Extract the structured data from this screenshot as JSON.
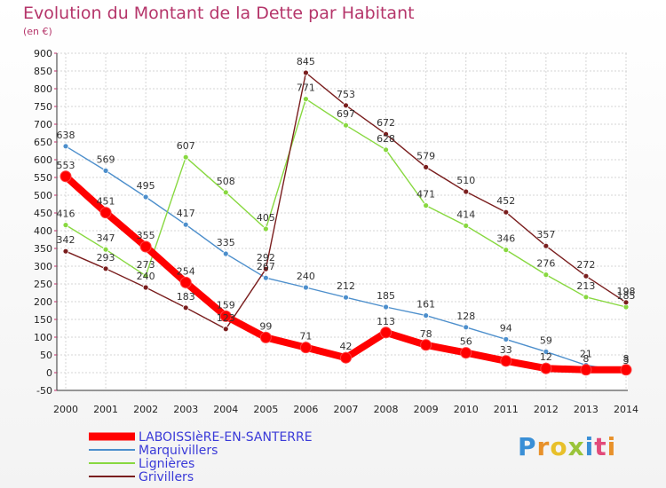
{
  "chart_data": {
    "type": "line",
    "title": "Evolution du Montant de la Dette par Habitant",
    "subtitle": "(en €)",
    "x": [
      "2000",
      "2001",
      "2002",
      "2003",
      "2004",
      "2005",
      "2006",
      "2007",
      "2008",
      "2009",
      "2010",
      "2011",
      "2012",
      "2013",
      "2014"
    ],
    "ylim": [
      -50,
      900
    ],
    "yticks": [
      -50,
      0,
      50,
      100,
      150,
      200,
      250,
      300,
      350,
      400,
      450,
      500,
      550,
      600,
      650,
      700,
      750,
      800,
      850,
      900
    ],
    "grid": true,
    "legend_placement": "bottom-left",
    "series": [
      {
        "name": "LABOISSIèRE-EN-SANTERRE",
        "color": "#ff0000",
        "values": [
          553,
          451,
          355,
          254,
          159,
          99,
          71,
          42,
          113,
          78,
          56,
          33,
          12,
          8,
          8
        ]
      },
      {
        "name": "Marquivillers",
        "color": "#4d8fcc",
        "values": [
          638,
          569,
          495,
          417,
          335,
          267,
          240,
          212,
          185,
          161,
          128,
          94,
          59,
          21,
          3
        ]
      },
      {
        "name": "Lignières",
        "color": "#88d840",
        "values": [
          416,
          347,
          273,
          607,
          508,
          405,
          771,
          697,
          628,
          471,
          414,
          346,
          276,
          213,
          185
        ]
      },
      {
        "name": "Grivillers",
        "color": "#7a1e1e",
        "values": [
          342,
          293,
          240,
          183,
          123,
          292,
          845,
          753,
          672,
          579,
          510,
          452,
          357,
          272,
          198
        ]
      }
    ]
  },
  "logo_text": "Proxiti"
}
